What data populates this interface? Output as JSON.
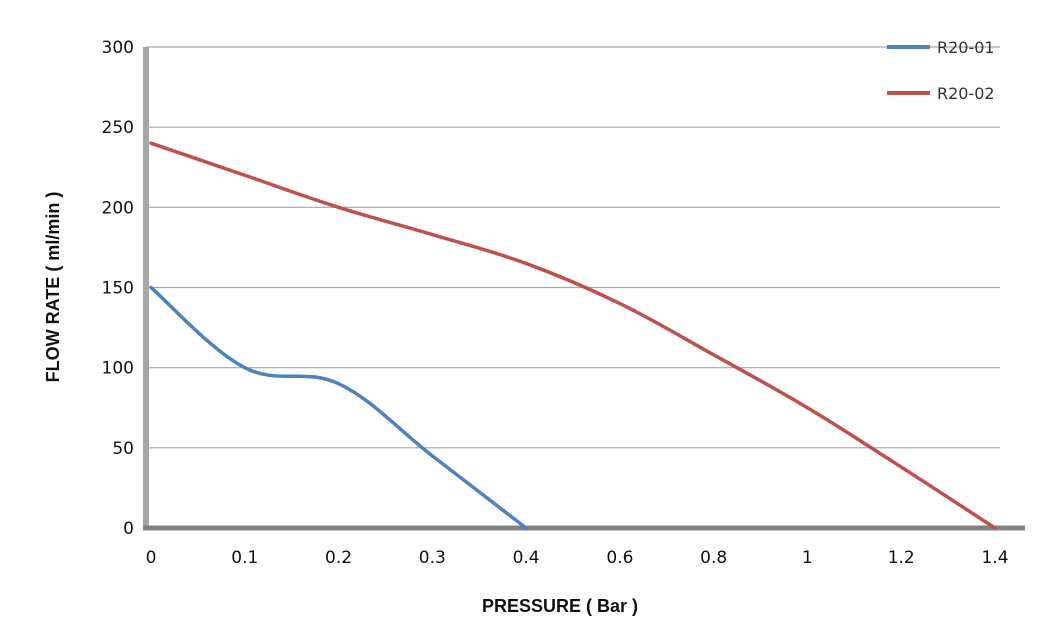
{
  "chart_data": {
    "type": "line",
    "xlabel": "PRESSURE ( Bar )",
    "ylabel": "FLOW RATE ( ml/min )",
    "x_ticks": [
      "0",
      "0.1",
      "0.2",
      "0.3",
      "0.4",
      "0.6",
      "0.8",
      "1",
      "1.2",
      "1.4"
    ],
    "y_ticks": [
      0,
      50,
      100,
      150,
      200,
      250,
      300
    ],
    "ylim": [
      0,
      300
    ],
    "grid": "horizontal",
    "legend_position": "top-right",
    "series": [
      {
        "name": "R20-01",
        "color": "#4f81bd",
        "x": [
          "0",
          "0.1",
          "0.2",
          "0.3",
          "0.4"
        ],
        "values": [
          150,
          100,
          90,
          45,
          0
        ]
      },
      {
        "name": "R20-02",
        "color": "#c0504d",
        "x": [
          "0",
          "0.1",
          "0.2",
          "0.3",
          "0.4",
          "0.6",
          "0.8",
          "1",
          "1.2",
          "1.4"
        ],
        "values": [
          240,
          220,
          200,
          183,
          165,
          140,
          108,
          75,
          38,
          0
        ]
      }
    ]
  }
}
